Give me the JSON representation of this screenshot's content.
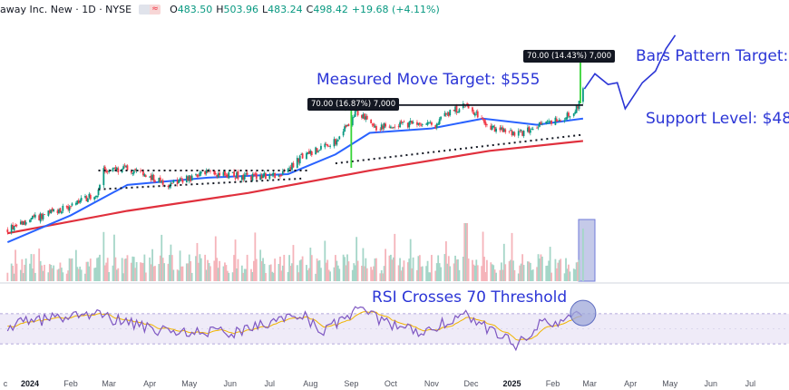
{
  "header": {
    "symbol": "away Inc. New · 1D · NYSE",
    "ohlc": [
      {
        "key": "O",
        "value": "483.50"
      },
      {
        "key": "H",
        "value": "503.96"
      },
      {
        "key": "L",
        "value": "483.24"
      },
      {
        "key": "C",
        "value": "498.42"
      }
    ],
    "change": "+19.68 (+4.11%)"
  },
  "annotations": {
    "measured_move": "Measured Move Target: $555",
    "bars_pattern": "Bars Pattern Target:",
    "support": "Support Level: $48",
    "rsi": "RSI Crosses 70 Threshold",
    "tag_left": "70.00 (16.87%) 7,000",
    "tag_right": "70.00 (14.43%) 7,000"
  },
  "colors": {
    "up": "#089981",
    "down": "#f23645",
    "ma50": "#2962ff",
    "ma200": "#e0303d",
    "annotation": "#2b35d6",
    "projection": "#2b35d6",
    "rsi": "#7e57c2",
    "rsi_ma": "#f0b400",
    "arrow": "#36d436",
    "highlight": "#9fa8da"
  },
  "chart_data": {
    "type": "candlestick",
    "xaxis_labels": [
      "c",
      "2024",
      "Feb",
      "Mar",
      "Apr",
      "May",
      "Jun",
      "Jul",
      "Aug",
      "Sep",
      "Oct",
      "Nov",
      "Dec",
      "2025",
      "Feb",
      "Mar",
      "Apr",
      "May",
      "Jun",
      "Jul"
    ],
    "bold_labels": [
      "2024",
      "2025"
    ],
    "price_path": [
      {
        "date": "2023-12-15",
        "price": 345
      },
      {
        "date": "2024-01-01",
        "price": 355
      },
      {
        "date": "2024-02-01",
        "price": 370
      },
      {
        "date": "2024-02-22",
        "price": 385
      },
      {
        "date": "2024-02-26",
        "price": 410
      },
      {
        "date": "2024-03-15",
        "price": 412
      },
      {
        "date": "2024-04-15",
        "price": 395
      },
      {
        "date": "2024-05-15",
        "price": 407
      },
      {
        "date": "2024-06-15",
        "price": 403
      },
      {
        "date": "2024-07-10",
        "price": 405
      },
      {
        "date": "2024-07-25",
        "price": 425
      },
      {
        "date": "2024-08-20",
        "price": 443
      },
      {
        "date": "2024-09-05",
        "price": 475
      },
      {
        "date": "2024-09-20",
        "price": 458
      },
      {
        "date": "2024-10-15",
        "price": 462
      },
      {
        "date": "2024-11-05",
        "price": 460
      },
      {
        "date": "2024-11-10",
        "price": 472
      },
      {
        "date": "2024-11-27",
        "price": 483
      },
      {
        "date": "2024-12-15",
        "price": 458
      },
      {
        "date": "2025-01-05",
        "price": 450
      },
      {
        "date": "2025-01-25",
        "price": 462
      },
      {
        "date": "2025-02-10",
        "price": 468
      },
      {
        "date": "2025-02-20",
        "price": 482
      },
      {
        "date": "2025-02-24",
        "price": 498
      }
    ],
    "ma50": [
      {
        "date": "2023-12-15",
        "value": 330
      },
      {
        "date": "2024-02-01",
        "value": 360
      },
      {
        "date": "2024-03-15",
        "value": 394
      },
      {
        "date": "2024-05-15",
        "value": 402
      },
      {
        "date": "2024-07-15",
        "value": 406
      },
      {
        "date": "2024-08-20",
        "value": 428
      },
      {
        "date": "2024-09-15",
        "value": 452
      },
      {
        "date": "2024-11-01",
        "value": 457
      },
      {
        "date": "2024-12-10",
        "value": 468
      },
      {
        "date": "2025-01-20",
        "value": 461
      },
      {
        "date": "2025-02-24",
        "value": 468
      }
    ],
    "ma200": [
      {
        "date": "2023-12-15",
        "value": 340
      },
      {
        "date": "2024-03-15",
        "value": 365
      },
      {
        "date": "2024-06-15",
        "value": 385
      },
      {
        "date": "2024-09-15",
        "value": 410
      },
      {
        "date": "2024-12-15",
        "value": 432
      },
      {
        "date": "2025-02-24",
        "value": 443
      }
    ],
    "levels": {
      "resistance": 483,
      "support_trendline_start": {
        "date": "2024-08-20",
        "value": 418
      },
      "support_trendline_end": {
        "date": "2025-02-24",
        "value": 450
      },
      "channel_top": 410,
      "channel_bottom_start": {
        "date": "2024-02-22",
        "value": 389
      },
      "channel_bottom_end": {
        "date": "2024-07-25",
        "value": 401
      }
    },
    "projection": [
      {
        "date": "2025-02-25",
        "price": 500
      },
      {
        "date": "2025-03-05",
        "price": 520
      },
      {
        "date": "2025-03-15",
        "price": 505
      },
      {
        "date": "2025-03-22",
        "price": 510
      },
      {
        "date": "2025-03-28",
        "price": 478
      },
      {
        "date": "2025-04-10",
        "price": 510
      },
      {
        "date": "2025-04-20",
        "price": 520
      },
      {
        "date": "2025-04-28",
        "price": 548
      },
      {
        "date": "2025-05-05",
        "price": 560
      }
    ],
    "rsi_path": [
      {
        "date": "2023-12-15",
        "value": 55
      },
      {
        "date": "2024-02-15",
        "value": 70
      },
      {
        "date": "2024-04-15",
        "value": 45
      },
      {
        "date": "2024-06-10",
        "value": 45
      },
      {
        "date": "2024-07-25",
        "value": 72
      },
      {
        "date": "2024-08-10",
        "value": 45
      },
      {
        "date": "2024-09-05",
        "value": 74
      },
      {
        "date": "2024-10-20",
        "value": 45
      },
      {
        "date": "2024-11-27",
        "value": 68
      },
      {
        "date": "2025-01-05",
        "value": 28
      },
      {
        "date": "2025-01-20",
        "value": 55
      },
      {
        "date": "2025-02-10",
        "value": 60
      },
      {
        "date": "2025-02-24",
        "value": 71
      }
    ],
    "rsi_bands": [
      30,
      70
    ]
  }
}
